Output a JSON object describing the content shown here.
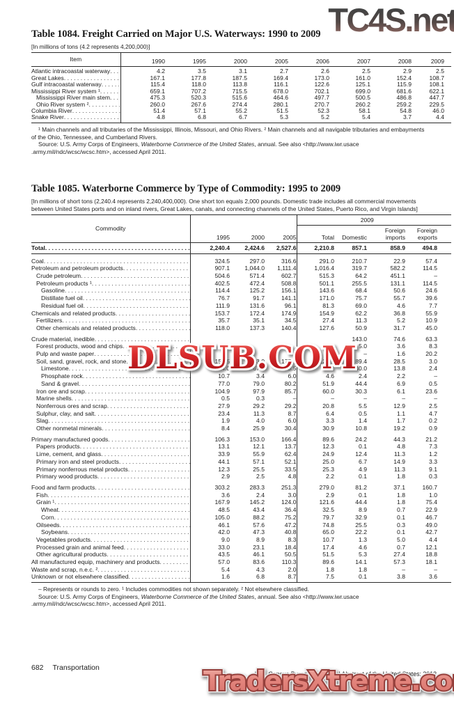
{
  "watermarks": {
    "top": "TC4S.net",
    "middle": "DLSUB.COM",
    "bottom": "TradersXtreme.com"
  },
  "table1084": {
    "title": "Table 1084. Freight Carried on Major U.S. Waterways: 1990 to 2009",
    "note": "[In millions of tons (4.2 represents 4,200,000)]",
    "item_header": "Item",
    "year_headers": [
      "1990",
      "1995",
      "2000",
      "2005",
      "2006",
      "2007",
      "2008",
      "2009"
    ],
    "rows": [
      {
        "label": "Atlantic intracoastal waterway",
        "indent": 0,
        "values": [
          "4.2",
          "3.5",
          "3.1",
          "2.7",
          "2.6",
          "2.5",
          "2.9",
          "2.5"
        ]
      },
      {
        "label": "Great Lakes",
        "indent": 0,
        "values": [
          "167.1",
          "177.8",
          "187.5",
          "169.4",
          "173.0",
          "161.0",
          "152.4",
          "108.7"
        ]
      },
      {
        "label": "Gulf intracoastal waterway",
        "indent": 0,
        "values": [
          "115.4",
          "118.0",
          "113.8",
          "116.1",
          "122.6",
          "125.1",
          "115.9",
          "108.1"
        ]
      },
      {
        "label": "Mississippi River system ¹",
        "indent": 0,
        "values": [
          "659.1",
          "707.2",
          "715.5",
          "678.0",
          "702.1",
          "699.0",
          "681.6",
          "622.1"
        ]
      },
      {
        "label": "Mississippi River main stem",
        "indent": 1,
        "values": [
          "475.3",
          "520.3",
          "515.6",
          "464.6",
          "497.7",
          "500.5",
          "486.8",
          "447.7"
        ]
      },
      {
        "label": "Ohio River system ²",
        "indent": 1,
        "values": [
          "260.0",
          "267.6",
          "274.4",
          "280.1",
          "270.7",
          "260.2",
          "259.2",
          "229.5"
        ]
      },
      {
        "label": "Columbia River",
        "indent": 0,
        "values": [
          "51.4",
          "57.1",
          "55.2",
          "51.5",
          "52.3",
          "58.1",
          "54.8",
          "46.0"
        ]
      },
      {
        "label": "Snake River",
        "indent": 0,
        "values": [
          "4.8",
          "6.8",
          "6.7",
          "5.3",
          "5.2",
          "5.4",
          "3.7",
          "4.4"
        ]
      }
    ],
    "footnote": "¹ Main channels and all tributaries of the Mississippi, Illinois, Missouri, and Ohio Rivers. ² Main channels and all navigable tributaries and embayments of the Ohio, Tennessee, and Cumberland Rivers.",
    "source_pre": "Source: U.S. Army Corps of Engineers, ",
    "source_italic": "Waterborne Commerce of the United States",
    "source_post": ", annual. See also <http://www.iwr.usace .army.mil/ndc/wcsc/wcsc.htm>, accessed April 2011."
  },
  "table1085": {
    "title": "Table 1085. Waterborne Commerce by Type of Commodity: 1995 to 2009",
    "note": "[In millions of short tons (2,240.4 represents 2,240,400,000). One short ton equals 2,000 pounds. Domestic trade includes all commercial movements between United States ports and on inland rivers, Great Lakes, canals, and connecting channels of the United States, Puerto Rico, and Virgin Islands]",
    "commodity_header": "Commodity",
    "year_headers": [
      "1995",
      "2000",
      "2005"
    ],
    "group_header": "2009",
    "group_columns": [
      "Total",
      "Domestic",
      "Foreign imports",
      "Foreign exports"
    ],
    "rows": [
      {
        "label": "Total",
        "indent": 0,
        "bold": true,
        "rule_below": true,
        "values": [
          "2,240.4",
          "2,424.6",
          "2,527.6",
          "2,210.8",
          "857.1",
          "858.9",
          "494.8"
        ]
      },
      {
        "label": "Coal",
        "indent": 0,
        "gap": true,
        "values": [
          "324.5",
          "297.0",
          "316.6",
          "291.0",
          "210.7",
          "22.9",
          "57.4"
        ]
      },
      {
        "label": "Petroleum and petroleum products",
        "indent": 0,
        "values": [
          "907.1",
          "1,044.0",
          "1,111.4",
          "1,016.4",
          "319.7",
          "582.2",
          "114.5"
        ]
      },
      {
        "label": "Crude petroleum",
        "indent": 1,
        "values": [
          "504.6",
          "571.4",
          "602.7",
          "515.3",
          "64.2",
          "451.1",
          "–"
        ]
      },
      {
        "label": "Petroleum products ¹",
        "indent": 1,
        "values": [
          "402.5",
          "472.4",
          "508.8",
          "501.1",
          "255.5",
          "131.1",
          "114.5"
        ]
      },
      {
        "label": "Gasoline",
        "indent": 2,
        "values": [
          "114.4",
          "125.2",
          "156.1",
          "143.6",
          "68.4",
          "50.6",
          "24.6"
        ]
      },
      {
        "label": "Distillate fuel oil",
        "indent": 2,
        "values": [
          "76.7",
          "91.7",
          "141.1",
          "171.0",
          "75.7",
          "55.7",
          "39.6"
        ]
      },
      {
        "label": "Residual fuel oil",
        "indent": 2,
        "values": [
          "111.9",
          "131.6",
          "96.1",
          "81.3",
          "69.0",
          "4.6",
          "7.7"
        ]
      },
      {
        "label": "Chemicals and related products",
        "indent": 0,
        "values": [
          "153.7",
          "172.4",
          "174.9",
          "154.9",
          "62.2",
          "36.8",
          "55.9"
        ]
      },
      {
        "label": "Fertilizers",
        "indent": 1,
        "values": [
          "35.7",
          "35.1",
          "34.5",
          "27.4",
          "11.3",
          "5.2",
          "10.9"
        ]
      },
      {
        "label": "Other chemicals and related products",
        "indent": 1,
        "values": [
          "118.0",
          "137.3",
          "140.4",
          "127.6",
          "50.9",
          "31.7",
          "45.0"
        ]
      },
      {
        "label": "Crude material, inedible",
        "indent": 0,
        "gap": true,
        "values": [
          "",
          "",
          "",
          "",
          "143.0",
          "74.6",
          "63.3"
        ]
      },
      {
        "label": "Forest products, wood and chips",
        "indent": 1,
        "values": [
          "",
          "",
          "",
          "",
          "5.0",
          "3.6",
          "8.3"
        ]
      },
      {
        "label": "Pulp and waste paper",
        "indent": 1,
        "values": [
          "",
          "",
          "",
          "",
          "–",
          "1.6",
          "20.2"
        ]
      },
      {
        "label": "Soil, sand, gravel, rock, and stone",
        "indent": 1,
        "values": [
          "152.5",
          "163.0",
          "177.9",
          "120.9",
          "89.4",
          "28.5",
          "3.0"
        ]
      },
      {
        "label": "Limestone",
        "indent": 2,
        "values": [
          "54.0",
          "67.4",
          "73.5",
          "56.2",
          "40.0",
          "13.8",
          "2.4"
        ]
      },
      {
        "label": "Phosphate rock",
        "indent": 2,
        "values": [
          "10.7",
          "3.4",
          "6.0",
          "4.6",
          "2.4",
          "2.2",
          "–"
        ]
      },
      {
        "label": "Sand & gravel",
        "indent": 2,
        "values": [
          "77.0",
          "79.0",
          "80.2",
          "51.9",
          "44.4",
          "6.9",
          "0.5"
        ]
      },
      {
        "label": "Iron ore and scrap",
        "indent": 1,
        "values": [
          "104.9",
          "97.9",
          "85.7",
          "60.0",
          "30.3",
          "6.1",
          "23.6"
        ]
      },
      {
        "label": "Marine shells",
        "indent": 1,
        "values": [
          "0.5",
          "0.3",
          "–",
          "–",
          "–",
          "–",
          "–"
        ]
      },
      {
        "label": "Nonferrous ores and scrap",
        "indent": 1,
        "values": [
          "27.9",
          "29.2",
          "29.2",
          "20.8",
          "5.5",
          "12.9",
          "2.5"
        ]
      },
      {
        "label": "Sulphur, clay, and salt",
        "indent": 1,
        "values": [
          "23.4",
          "11.3",
          "8.7",
          "6.4",
          "0.5",
          "1.1",
          "4.7"
        ]
      },
      {
        "label": "Slag",
        "indent": 1,
        "values": [
          "1.9",
          "4.0",
          "6.0",
          "3.3",
          "1.4",
          "1.7",
          "0.2"
        ]
      },
      {
        "label": "Other nonmetal minerals",
        "indent": 1,
        "values": [
          "8.4",
          "25.9",
          "30.4",
          "30.9",
          "10.8",
          "19.2",
          "0.9"
        ]
      },
      {
        "label": "Primary manufactured goods",
        "indent": 0,
        "gap": true,
        "values": [
          "106.3",
          "153.0",
          "166.4",
          "89.6",
          "24.2",
          "44.3",
          "21.2"
        ]
      },
      {
        "label": "Papers products",
        "indent": 1,
        "values": [
          "13.1",
          "12.1",
          "13.7",
          "12.3",
          "0.1",
          "4.8",
          "7.3"
        ]
      },
      {
        "label": "Lime, cement, and glass",
        "indent": 1,
        "values": [
          "33.9",
          "55.9",
          "62.4",
          "24.9",
          "12.4",
          "11.3",
          "1.2"
        ]
      },
      {
        "label": "Primary iron and steel products",
        "indent": 1,
        "values": [
          "44.1",
          "57.1",
          "52.1",
          "25.0",
          "6.7",
          "14.9",
          "3.3"
        ]
      },
      {
        "label": "Primary nonferrous metal products",
        "indent": 1,
        "values": [
          "12.3",
          "25.5",
          "33.5",
          "25.3",
          "4.9",
          "11.3",
          "9.1"
        ]
      },
      {
        "label": "Primary wood products",
        "indent": 1,
        "values": [
          "2.9",
          "2.5",
          "4.8",
          "2.2",
          "0.1",
          "1.8",
          "0.3"
        ]
      },
      {
        "label": "Food and farm products",
        "indent": 0,
        "gap": true,
        "values": [
          "303.2",
          "283.3",
          "251.3",
          "279.0",
          "81.2",
          "37.1",
          "160.7"
        ]
      },
      {
        "label": "Fish",
        "indent": 1,
        "values": [
          "3.6",
          "2.4",
          "3.0",
          "2.9",
          "0.1",
          "1.8",
          "1.0"
        ]
      },
      {
        "label": "Grain ¹",
        "indent": 1,
        "values": [
          "167.9",
          "145.2",
          "124.0",
          "121.6",
          "44.4",
          "1.8",
          "75.4"
        ]
      },
      {
        "label": "Wheat",
        "indent": 2,
        "values": [
          "48.5",
          "43.4",
          "36.4",
          "32.5",
          "8.9",
          "0.7",
          "22.9"
        ]
      },
      {
        "label": "Corn",
        "indent": 2,
        "values": [
          "105.0",
          "88.2",
          "75.2",
          "79.7",
          "32.9",
          "0.1",
          "46.7"
        ]
      },
      {
        "label": "Oilseeds",
        "indent": 1,
        "values": [
          "46.1",
          "57.6",
          "47.2",
          "74.8",
          "25.5",
          "0.3",
          "49.0"
        ]
      },
      {
        "label": "Soybeans",
        "indent": 2,
        "values": [
          "42.0",
          "47.3",
          "40.8",
          "65.0",
          "22.2",
          "0.1",
          "42.7"
        ]
      },
      {
        "label": "Vegetables products",
        "indent": 1,
        "values": [
          "9.0",
          "8.9",
          "8.3",
          "10.7",
          "1.3",
          "5.0",
          "4.4"
        ]
      },
      {
        "label": "Processed grain and animal feed",
        "indent": 1,
        "values": [
          "33.0",
          "23.1",
          "18.4",
          "17.4",
          "4.6",
          "0.7",
          "12.1"
        ]
      },
      {
        "label": "Other agricultural products",
        "indent": 1,
        "values": [
          "43.5",
          "46.1",
          "50.5",
          "51.5",
          "5.3",
          "27.4",
          "18.8"
        ]
      },
      {
        "label": "All manufactured equip, machinery and products",
        "indent": 0,
        "values": [
          "57.0",
          "83.6",
          "110.3",
          "89.6",
          "14.1",
          "57.3",
          "18.1"
        ]
      },
      {
        "label": "Waste and scrap, n.e.c. ²",
        "indent": 0,
        "values": [
          "5.4",
          "4.3",
          "2.0",
          "1.8",
          "1.8",
          "–",
          "–"
        ]
      },
      {
        "label": "Unknown or not elsewhere classified",
        "indent": 0,
        "values": [
          "1.6",
          "6.8",
          "8.7",
          "7.5",
          "0.1",
          "3.8",
          "3.6"
        ]
      }
    ],
    "footnote": "– Represents or rounds to zero. ¹ Includes commodities not shown separately. ² Not elsewhere classified.",
    "source_pre": "Source: U.S. Army Corps of Engineers, ",
    "source_italic": "Waterborne Commerce of the United States",
    "source_post": ", annual. See also <http://www.iwr.usace .army.mil/ndc/wcsc/wcsc.htm>, accessed April 2011."
  },
  "footer": {
    "page_number": "682",
    "section": "Transportation",
    "right": "U.S. Census Bureau, Statistical Abstract of the United States: 2012"
  }
}
